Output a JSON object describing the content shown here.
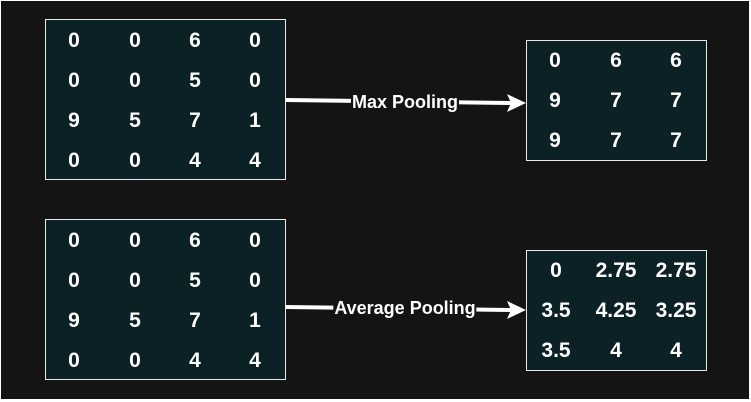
{
  "diagram": {
    "max_pooling": {
      "label": "Max Pooling",
      "input": [
        [
          "0",
          "0",
          "6",
          "0"
        ],
        [
          "0",
          "0",
          "5",
          "0"
        ],
        [
          "9",
          "5",
          "7",
          "1"
        ],
        [
          "0",
          "0",
          "4",
          "4"
        ]
      ],
      "output": [
        [
          "0",
          "6",
          "6"
        ],
        [
          "9",
          "7",
          "7"
        ],
        [
          "9",
          "7",
          "7"
        ]
      ]
    },
    "average_pooling": {
      "label": "Average Pooling",
      "input": [
        [
          "0",
          "0",
          "6",
          "0"
        ],
        [
          "0",
          "0",
          "5",
          "0"
        ],
        [
          "9",
          "5",
          "7",
          "1"
        ],
        [
          "0",
          "0",
          "4",
          "4"
        ]
      ],
      "output": [
        [
          "0",
          "2.75",
          "2.75"
        ],
        [
          "3.5",
          "4.25",
          "3.25"
        ],
        [
          "3.5",
          "4",
          "4"
        ]
      ]
    }
  },
  "colors": {
    "background": "#141414",
    "cell_fill": "#0b2126",
    "border": "#e8e8e8",
    "text": "#ffffff"
  }
}
